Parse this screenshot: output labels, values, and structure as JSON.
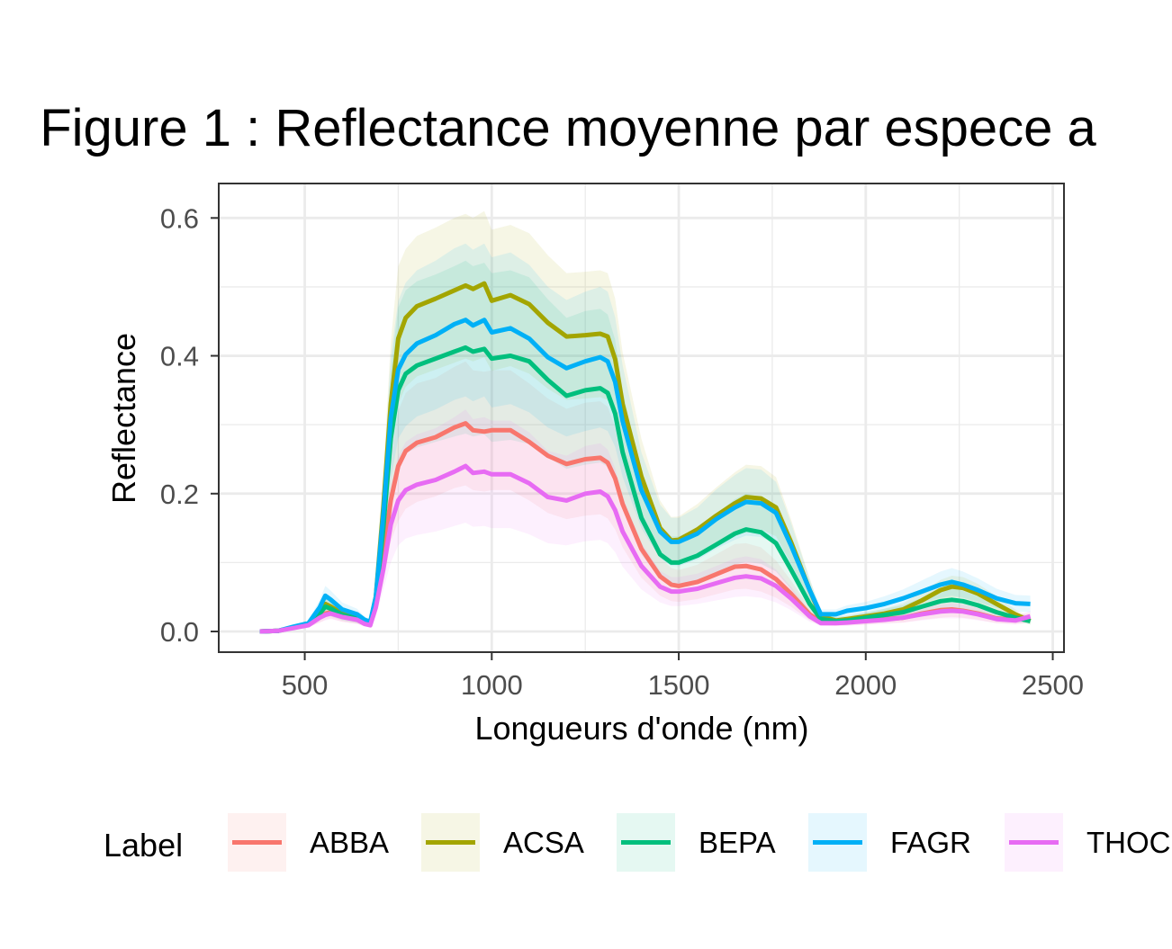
{
  "chart_data": {
    "type": "line",
    "title": "Figure 1 : Reflectance moyenne par espece a",
    "xlabel": "Longueurs d'onde (nm)",
    "ylabel": "Reflectance",
    "xlim": [
      270,
      2530
    ],
    "ylim": [
      -0.03,
      0.65
    ],
    "x_ticks": [
      500,
      1000,
      1500,
      2000,
      2500
    ],
    "x_tick_labels": [
      "500",
      "1000",
      "1500",
      "2000",
      "2500"
    ],
    "y_ticks": [
      0.0,
      0.2,
      0.4,
      0.6
    ],
    "y_tick_labels": [
      "0.0",
      "0.2",
      "0.4",
      "0.6"
    ],
    "grid": true,
    "legend_title": "Label",
    "legend_position": "bottom",
    "band": "shaded ribbon around each mean line",
    "x": [
      380,
      430,
      470,
      510,
      540,
      555,
      570,
      600,
      640,
      660,
      675,
      690,
      710,
      730,
      750,
      770,
      800,
      850,
      900,
      930,
      950,
      980,
      1000,
      1050,
      1100,
      1150,
      1200,
      1250,
      1290,
      1310,
      1330,
      1350,
      1400,
      1450,
      1480,
      1500,
      1550,
      1600,
      1650,
      1680,
      1720,
      1760,
      1800,
      1850,
      1880,
      1920,
      1950,
      2000,
      2050,
      2100,
      2150,
      2200,
      2230,
      2260,
      2300,
      2350,
      2400,
      2440
    ],
    "series": [
      {
        "name": "ABBA",
        "color": "#F8766D",
        "values": [
          0.0,
          0.001,
          0.006,
          0.01,
          0.021,
          0.026,
          0.028,
          0.022,
          0.018,
          0.012,
          0.01,
          0.04,
          0.11,
          0.19,
          0.24,
          0.262,
          0.274,
          0.282,
          0.296,
          0.302,
          0.292,
          0.29,
          0.292,
          0.292,
          0.275,
          0.255,
          0.243,
          0.25,
          0.252,
          0.245,
          0.222,
          0.185,
          0.12,
          0.08,
          0.068,
          0.066,
          0.072,
          0.083,
          0.094,
          0.095,
          0.09,
          0.076,
          0.055,
          0.025,
          0.014,
          0.013,
          0.014,
          0.016,
          0.018,
          0.02,
          0.026,
          0.031,
          0.032,
          0.03,
          0.026,
          0.019,
          0.017,
          0.02
        ],
        "lower": [
          0.0,
          0.0,
          0.004,
          0.006,
          0.013,
          0.017,
          0.019,
          0.014,
          0.011,
          0.008,
          0.006,
          0.025,
          0.07,
          0.13,
          0.16,
          0.178,
          0.188,
          0.196,
          0.208,
          0.212,
          0.205,
          0.203,
          0.205,
          0.205,
          0.19,
          0.172,
          0.163,
          0.168,
          0.17,
          0.164,
          0.148,
          0.122,
          0.078,
          0.052,
          0.044,
          0.043,
          0.047,
          0.054,
          0.061,
          0.062,
          0.058,
          0.049,
          0.036,
          0.016,
          0.009,
          0.008,
          0.009,
          0.01,
          0.012,
          0.013,
          0.017,
          0.02,
          0.021,
          0.02,
          0.017,
          0.012,
          0.011,
          0.013
        ],
        "upper": [
          0.0,
          0.002,
          0.009,
          0.014,
          0.029,
          0.035,
          0.037,
          0.03,
          0.025,
          0.016,
          0.014,
          0.055,
          0.15,
          0.25,
          0.32,
          0.346,
          0.36,
          0.368,
          0.384,
          0.392,
          0.379,
          0.377,
          0.379,
          0.379,
          0.36,
          0.338,
          0.323,
          0.332,
          0.334,
          0.326,
          0.296,
          0.248,
          0.162,
          0.108,
          0.092,
          0.089,
          0.097,
          0.112,
          0.127,
          0.128,
          0.122,
          0.103,
          0.074,
          0.034,
          0.019,
          0.018,
          0.019,
          0.022,
          0.024,
          0.027,
          0.035,
          0.042,
          0.043,
          0.04,
          0.035,
          0.026,
          0.023,
          0.027
        ]
      },
      {
        "name": "ACSA",
        "color": "#A3A500",
        "values": [
          0.0,
          0.001,
          0.006,
          0.01,
          0.028,
          0.04,
          0.036,
          0.026,
          0.02,
          0.014,
          0.012,
          0.05,
          0.18,
          0.33,
          0.425,
          0.455,
          0.472,
          0.483,
          0.495,
          0.502,
          0.497,
          0.505,
          0.48,
          0.488,
          0.475,
          0.448,
          0.428,
          0.43,
          0.432,
          0.428,
          0.395,
          0.33,
          0.225,
          0.15,
          0.132,
          0.133,
          0.148,
          0.168,
          0.186,
          0.195,
          0.193,
          0.18,
          0.13,
          0.06,
          0.022,
          0.016,
          0.018,
          0.022,
          0.026,
          0.032,
          0.045,
          0.06,
          0.065,
          0.063,
          0.055,
          0.04,
          0.025,
          0.015
        ],
        "lower": [
          0.0,
          0.0,
          0.004,
          0.006,
          0.018,
          0.03,
          0.026,
          0.018,
          0.013,
          0.009,
          0.008,
          0.035,
          0.13,
          0.25,
          0.33,
          0.355,
          0.37,
          0.38,
          0.39,
          0.396,
          0.392,
          0.398,
          0.378,
          0.385,
          0.374,
          0.352,
          0.336,
          0.338,
          0.34,
          0.336,
          0.309,
          0.257,
          0.172,
          0.114,
          0.1,
          0.101,
          0.113,
          0.129,
          0.143,
          0.15,
          0.148,
          0.138,
          0.099,
          0.045,
          0.016,
          0.011,
          0.013,
          0.016,
          0.019,
          0.024,
          0.034,
          0.046,
          0.05,
          0.048,
          0.042,
          0.03,
          0.018,
          0.01
        ],
        "upper": [
          0.0,
          0.002,
          0.009,
          0.014,
          0.038,
          0.052,
          0.046,
          0.034,
          0.027,
          0.019,
          0.016,
          0.065,
          0.23,
          0.42,
          0.53,
          0.555,
          0.574,
          0.586,
          0.6,
          0.606,
          0.6,
          0.61,
          0.583,
          0.59,
          0.578,
          0.546,
          0.52,
          0.522,
          0.524,
          0.52,
          0.483,
          0.405,
          0.28,
          0.19,
          0.166,
          0.167,
          0.185,
          0.209,
          0.231,
          0.242,
          0.24,
          0.224,
          0.163,
          0.077,
          0.029,
          0.021,
          0.023,
          0.028,
          0.033,
          0.041,
          0.057,
          0.075,
          0.081,
          0.079,
          0.069,
          0.051,
          0.032,
          0.02
        ]
      },
      {
        "name": "BEPA",
        "color": "#00BF7D",
        "values": [
          0.0,
          0.001,
          0.006,
          0.01,
          0.026,
          0.036,
          0.033,
          0.024,
          0.019,
          0.013,
          0.011,
          0.045,
          0.15,
          0.28,
          0.35,
          0.374,
          0.386,
          0.396,
          0.406,
          0.412,
          0.406,
          0.41,
          0.396,
          0.4,
          0.392,
          0.365,
          0.342,
          0.35,
          0.353,
          0.346,
          0.316,
          0.26,
          0.165,
          0.112,
          0.1,
          0.1,
          0.11,
          0.126,
          0.142,
          0.148,
          0.144,
          0.128,
          0.09,
          0.04,
          0.018,
          0.015,
          0.016,
          0.02,
          0.024,
          0.028,
          0.036,
          0.044,
          0.046,
          0.044,
          0.038,
          0.028,
          0.02,
          0.015
        ],
        "lower": [
          0.0,
          0.0,
          0.004,
          0.006,
          0.016,
          0.024,
          0.022,
          0.016,
          0.012,
          0.009,
          0.007,
          0.03,
          0.1,
          0.19,
          0.24,
          0.258,
          0.267,
          0.275,
          0.283,
          0.287,
          0.283,
          0.286,
          0.275,
          0.278,
          0.272,
          0.253,
          0.236,
          0.242,
          0.245,
          0.239,
          0.218,
          0.178,
          0.112,
          0.076,
          0.068,
          0.068,
          0.075,
          0.086,
          0.097,
          0.101,
          0.098,
          0.087,
          0.061,
          0.027,
          0.012,
          0.01,
          0.011,
          0.014,
          0.017,
          0.02,
          0.025,
          0.031,
          0.032,
          0.031,
          0.026,
          0.019,
          0.014,
          0.01
        ],
        "upper": [
          0.0,
          0.002,
          0.009,
          0.014,
          0.037,
          0.05,
          0.045,
          0.033,
          0.026,
          0.018,
          0.015,
          0.062,
          0.21,
          0.38,
          0.47,
          0.495,
          0.508,
          0.518,
          0.53,
          0.538,
          0.53,
          0.535,
          0.52,
          0.524,
          0.514,
          0.482,
          0.455,
          0.465,
          0.468,
          0.46,
          0.423,
          0.35,
          0.225,
          0.154,
          0.138,
          0.138,
          0.15,
          0.17,
          0.192,
          0.2,
          0.195,
          0.174,
          0.123,
          0.056,
          0.026,
          0.021,
          0.022,
          0.027,
          0.033,
          0.038,
          0.049,
          0.059,
          0.062,
          0.059,
          0.051,
          0.038,
          0.027,
          0.021
        ]
      },
      {
        "name": "FAGR",
        "color": "#00B0F6",
        "values": [
          0.0,
          0.001,
          0.007,
          0.012,
          0.035,
          0.052,
          0.046,
          0.032,
          0.025,
          0.017,
          0.014,
          0.05,
          0.17,
          0.31,
          0.38,
          0.402,
          0.418,
          0.43,
          0.446,
          0.452,
          0.444,
          0.452,
          0.434,
          0.44,
          0.425,
          0.398,
          0.382,
          0.392,
          0.398,
          0.392,
          0.362,
          0.305,
          0.205,
          0.145,
          0.13,
          0.13,
          0.142,
          0.163,
          0.18,
          0.188,
          0.186,
          0.172,
          0.125,
          0.06,
          0.025,
          0.025,
          0.03,
          0.034,
          0.04,
          0.048,
          0.058,
          0.068,
          0.072,
          0.068,
          0.06,
          0.048,
          0.041,
          0.04
        ],
        "lower": [
          0.0,
          0.0,
          0.005,
          0.008,
          0.024,
          0.038,
          0.033,
          0.022,
          0.017,
          0.012,
          0.01,
          0.035,
          0.12,
          0.22,
          0.28,
          0.298,
          0.312,
          0.322,
          0.336,
          0.341,
          0.334,
          0.341,
          0.325,
          0.33,
          0.318,
          0.296,
          0.283,
          0.291,
          0.296,
          0.291,
          0.268,
          0.224,
          0.15,
          0.106,
          0.095,
          0.095,
          0.104,
          0.12,
          0.133,
          0.139,
          0.137,
          0.127,
          0.092,
          0.044,
          0.018,
          0.018,
          0.022,
          0.025,
          0.029,
          0.035,
          0.042,
          0.049,
          0.052,
          0.049,
          0.043,
          0.034,
          0.029,
          0.028
        ],
        "upper": [
          0.0,
          0.002,
          0.01,
          0.016,
          0.046,
          0.066,
          0.059,
          0.042,
          0.033,
          0.022,
          0.018,
          0.065,
          0.22,
          0.4,
          0.48,
          0.506,
          0.524,
          0.538,
          0.556,
          0.563,
          0.554,
          0.563,
          0.543,
          0.55,
          0.532,
          0.5,
          0.481,
          0.493,
          0.5,
          0.493,
          0.456,
          0.386,
          0.26,
          0.184,
          0.165,
          0.165,
          0.18,
          0.206,
          0.227,
          0.237,
          0.235,
          0.217,
          0.158,
          0.076,
          0.032,
          0.032,
          0.038,
          0.043,
          0.051,
          0.061,
          0.074,
          0.087,
          0.092,
          0.087,
          0.077,
          0.062,
          0.053,
          0.052
        ]
      },
      {
        "name": "THOC",
        "color": "#E76BF3",
        "values": [
          0.0,
          0.001,
          0.005,
          0.009,
          0.02,
          0.024,
          0.026,
          0.021,
          0.017,
          0.011,
          0.009,
          0.035,
          0.09,
          0.155,
          0.19,
          0.205,
          0.213,
          0.22,
          0.232,
          0.24,
          0.23,
          0.232,
          0.228,
          0.228,
          0.215,
          0.195,
          0.19,
          0.2,
          0.203,
          0.196,
          0.176,
          0.145,
          0.095,
          0.065,
          0.058,
          0.058,
          0.062,
          0.07,
          0.078,
          0.08,
          0.077,
          0.066,
          0.048,
          0.022,
          0.012,
          0.012,
          0.013,
          0.015,
          0.017,
          0.02,
          0.025,
          0.029,
          0.03,
          0.029,
          0.025,
          0.018,
          0.016,
          0.022
        ],
        "lower": [
          0.0,
          0.0,
          0.003,
          0.006,
          0.013,
          0.016,
          0.018,
          0.014,
          0.011,
          0.007,
          0.006,
          0.022,
          0.06,
          0.1,
          0.125,
          0.135,
          0.14,
          0.145,
          0.153,
          0.158,
          0.152,
          0.153,
          0.15,
          0.15,
          0.141,
          0.128,
          0.125,
          0.131,
          0.133,
          0.128,
          0.115,
          0.094,
          0.061,
          0.042,
          0.037,
          0.037,
          0.04,
          0.045,
          0.05,
          0.051,
          0.049,
          0.042,
          0.031,
          0.014,
          0.008,
          0.008,
          0.008,
          0.01,
          0.011,
          0.013,
          0.016,
          0.019,
          0.019,
          0.019,
          0.016,
          0.012,
          0.01,
          0.014
        ],
        "upper": [
          0.0,
          0.002,
          0.007,
          0.012,
          0.027,
          0.032,
          0.034,
          0.028,
          0.023,
          0.015,
          0.012,
          0.048,
          0.12,
          0.21,
          0.255,
          0.275,
          0.286,
          0.295,
          0.311,
          0.322,
          0.308,
          0.311,
          0.306,
          0.306,
          0.289,
          0.262,
          0.255,
          0.269,
          0.273,
          0.264,
          0.237,
          0.196,
          0.129,
          0.088,
          0.079,
          0.079,
          0.084,
          0.095,
          0.106,
          0.109,
          0.105,
          0.09,
          0.065,
          0.03,
          0.016,
          0.016,
          0.018,
          0.02,
          0.023,
          0.027,
          0.034,
          0.039,
          0.041,
          0.039,
          0.034,
          0.024,
          0.022,
          0.03
        ]
      }
    ]
  }
}
